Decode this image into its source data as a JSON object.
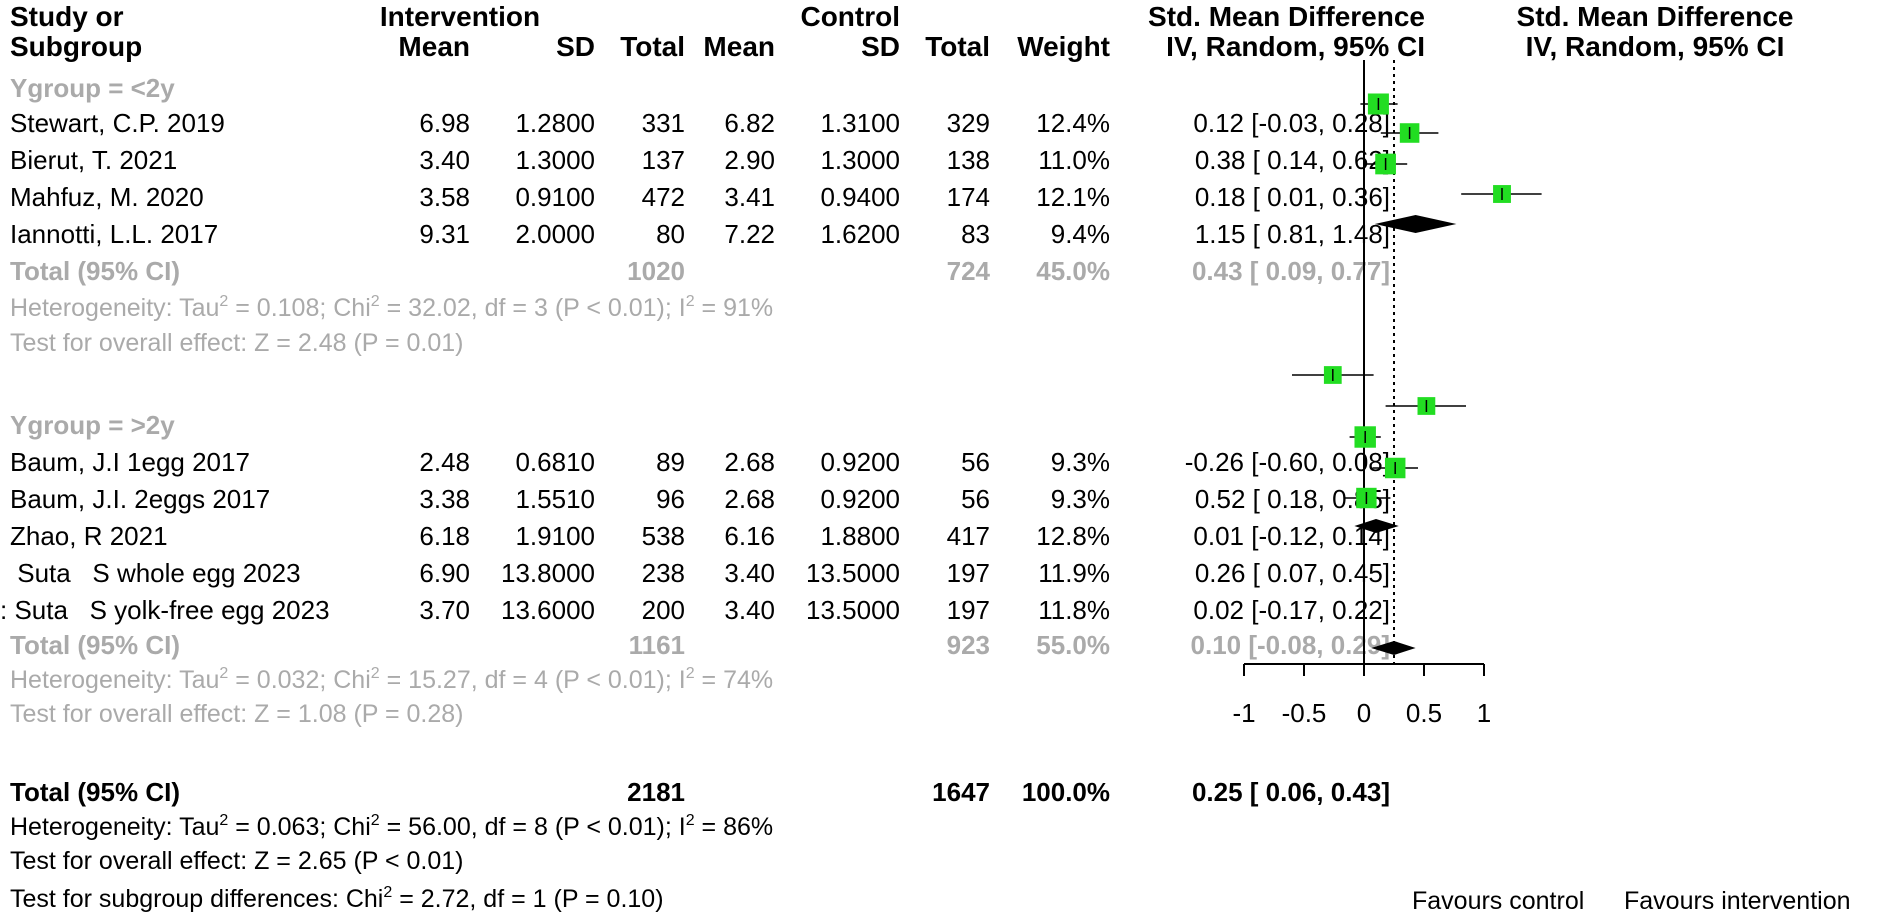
{
  "headers": {
    "study_line1": "Study or",
    "study_line2": "Subgroup",
    "intervention": "Intervention",
    "control": "Control",
    "mean": "Mean",
    "sd": "SD",
    "total": "Total",
    "weight": "Weight",
    "smd_line1": "Std. Mean Difference",
    "smd_line2": "IV, Random, 95% CI",
    "plot_line1": "Std. Mean Difference",
    "plot_line2": "IV, Random, 95% CI"
  },
  "groups": [
    {
      "label": "Ygroup = <2y",
      "studies": [
        {
          "name": "Stewart, C.P. 2019",
          "i_mean": "6.98",
          "i_sd": "1.2800",
          "i_total": "331",
          "c_mean": "6.82",
          "c_sd": "1.3100",
          "c_total": "329",
          "weight": "12.4%",
          "ci_text": "0.12 [-0.03, 0.28]"
        },
        {
          "name": "Bierut, T. 2021",
          "i_mean": "3.40",
          "i_sd": "1.3000",
          "i_total": "137",
          "c_mean": "2.90",
          "c_sd": "1.3000",
          "c_total": "138",
          "weight": "11.0%",
          "ci_text": "0.38 [ 0.14, 0.62]"
        },
        {
          "name": "Mahfuz, M. 2020",
          "i_mean": "3.58",
          "i_sd": "0.9100",
          "i_total": "472",
          "c_mean": "3.41",
          "c_sd": "0.9400",
          "c_total": "174",
          "weight": "12.1%",
          "ci_text": "0.18 [ 0.01, 0.36]"
        },
        {
          "name": "Iannotti, L.L. 2017",
          "i_mean": "9.31",
          "i_sd": "2.0000",
          "i_total": "80",
          "c_mean": "7.22",
          "c_sd": "1.6200",
          "c_total": "83",
          "weight": "9.4%",
          "ci_text": "1.15 [ 0.81, 1.48]"
        }
      ],
      "total": {
        "label": "Total (95% CI)",
        "i_total": "1020",
        "c_total": "724",
        "weight": "45.0%",
        "ci_text": "0.43 [ 0.09, 0.77]"
      },
      "heterogeneity": {
        "prefix": "Heterogeneity: Tau",
        "mid1": " = 0.108; Chi",
        "mid2": " = 32.02, df = 3 (P < 0.01); I",
        "end": " = 91%"
      },
      "overall": "Test for overall effect: Z = 2.48 (P = 0.01)"
    },
    {
      "label": "Ygroup = >2y",
      "studies": [
        {
          "name": "Baum, J.I 1egg 2017",
          "i_mean": "2.48",
          "i_sd": "0.6810",
          "i_total": "89",
          "c_mean": "2.68",
          "c_sd": "0.9200",
          "c_total": "56",
          "weight": "9.3%",
          "ci_text": "-0.26 [-0.60, 0.08]"
        },
        {
          "name": "Baum, J.I. 2eggs 2017",
          "i_mean": "3.38",
          "i_sd": "1.5510",
          "i_total": "96",
          "c_mean": "2.68",
          "c_sd": "0.9200",
          "c_total": "56",
          "weight": "9.3%",
          "ci_text": "0.52 [ 0.18, 0.85]"
        },
        {
          "name": "Zhao, R 2021",
          "i_mean": "6.18",
          "i_sd": "1.9100",
          "i_total": "538",
          "c_mean": "6.16",
          "c_sd": "1.8800",
          "c_total": "417",
          "weight": "12.8%",
          "ci_text": "0.01 [-0.12, 0.14]"
        },
        {
          "name": " Suta   S whole egg 2023",
          "i_mean": "6.90",
          "i_sd": "13.8000",
          "i_total": "238",
          "c_mean": "3.40",
          "c_sd": "13.5000",
          "c_total": "197",
          "weight": "11.9%",
          "ci_text": "0.26 [ 0.07, 0.45]"
        },
        {
          "name": ": Suta   S yolk-free egg 2023",
          "i_mean": "3.70",
          "i_sd": "13.6000",
          "i_total": "200",
          "c_mean": "3.40",
          "c_sd": "13.5000",
          "c_total": "197",
          "weight": "11.8%",
          "ci_text": "0.02 [-0.17, 0.22]"
        }
      ],
      "total": {
        "label": "Total (95% CI)",
        "i_total": "1161",
        "c_total": "923",
        "weight": "55.0%",
        "ci_text": "0.10 [-0.08, 0.29]"
      },
      "heterogeneity": {
        "prefix": "Heterogeneity: Tau",
        "mid1": " = 0.032; Chi",
        "mid2": " = 15.27, df = 4 (P < 0.01); I",
        "end": " = 74%"
      },
      "overall": "Test for overall effect: Z = 1.08 (P = 0.28)"
    }
  ],
  "overall_total": {
    "label": "Total (95% CI)",
    "i_total": "2181",
    "c_total": "1647",
    "weight": "100.0%",
    "ci_text": "0.25 [ 0.06, 0.43]"
  },
  "overall_heterogeneity": {
    "prefix": "Heterogeneity: Tau",
    "mid1": " = 0.063; Chi",
    "mid2": " = 56.00, df = 8 (P < 0.01); I",
    "end": " = 86%"
  },
  "overall_effect": "Test for overall effect: Z = 2.65 (P < 0.01)",
  "subgroup_test": {
    "prefix": "Test for subgroup differences: Chi",
    "end": " = 2.72, df = 1 (P = 0.10)"
  },
  "axis_labels": {
    "left": "Favours control",
    "right": "Favours intervention"
  },
  "colors": {
    "study_marker": "#22dd22",
    "diamond": "#000000",
    "subgroup_text": "#aaaaaa"
  },
  "chart_data": {
    "type": "forest",
    "xlim": [
      -1,
      1
    ],
    "ticks": [
      -1,
      -0.5,
      0,
      0.5,
      1
    ],
    "tick_labels": [
      "-1",
      "-0.5",
      "0",
      "0.5",
      "1"
    ],
    "overall_line": 0.25,
    "studies": [
      {
        "name": "Stewart, C.P. 2019",
        "est": 0.12,
        "lo": -0.03,
        "hi": 0.28,
        "weight": 12.4
      },
      {
        "name": "Bierut, T. 2021",
        "est": 0.38,
        "lo": 0.14,
        "hi": 0.62,
        "weight": 11.0
      },
      {
        "name": "Mahfuz, M. 2020",
        "est": 0.18,
        "lo": 0.01,
        "hi": 0.36,
        "weight": 12.1
      },
      {
        "name": "Iannotti, L.L. 2017",
        "est": 1.15,
        "lo": 0.81,
        "hi": 1.48,
        "weight": 9.4
      },
      {
        "name": "Baum, J.I 1egg 2017",
        "est": -0.26,
        "lo": -0.6,
        "hi": 0.08,
        "weight": 9.3
      },
      {
        "name": "Baum, J.I. 2eggs 2017",
        "est": 0.52,
        "lo": 0.18,
        "hi": 0.85,
        "weight": 9.3
      },
      {
        "name": "Zhao, R 2021",
        "est": 0.01,
        "lo": -0.12,
        "hi": 0.14,
        "weight": 12.8
      },
      {
        "name": "Suta S whole egg 2023",
        "est": 0.26,
        "lo": 0.07,
        "hi": 0.45,
        "weight": 11.9
      },
      {
        "name": "Suta S yolk-free egg 2023",
        "est": 0.02,
        "lo": -0.17,
        "hi": 0.22,
        "weight": 11.8
      }
    ],
    "summaries": [
      {
        "name": "Ygroup = <2y total",
        "est": 0.43,
        "lo": 0.09,
        "hi": 0.77
      },
      {
        "name": "Ygroup = >2y total",
        "est": 0.1,
        "lo": -0.08,
        "hi": 0.29
      },
      {
        "name": "Overall total",
        "est": 0.25,
        "lo": 0.06,
        "hi": 0.43
      }
    ]
  }
}
